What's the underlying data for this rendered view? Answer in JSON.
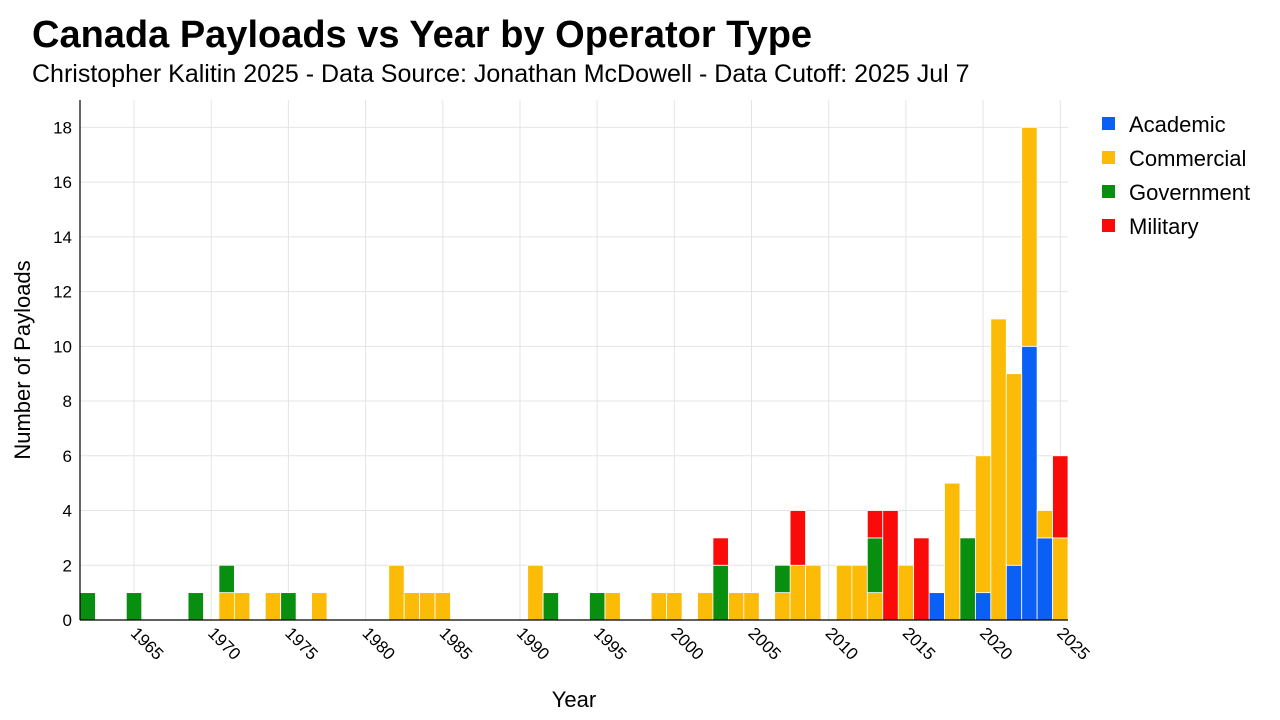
{
  "chart_data": {
    "type": "bar",
    "stacked": true,
    "title": "Canada Payloads vs Year by Operator Type",
    "subtitle": "Christopher Kalitin 2025 - Data Source: Jonathan McDowell - Data Cutoff: 2025 Jul 7",
    "xlabel": "Year",
    "ylabel": "Number of Payloads",
    "xlim": [
      1961.5,
      2025.5
    ],
    "ylim": [
      0,
      19
    ],
    "xticks": [
      1965,
      1970,
      1975,
      1980,
      1985,
      1990,
      1995,
      2000,
      2005,
      2010,
      2015,
      2020,
      2025
    ],
    "yticks": [
      0,
      2,
      4,
      6,
      8,
      10,
      12,
      14,
      16,
      18
    ],
    "grid": true,
    "legend_position": "top-right",
    "series": [
      {
        "name": "Academic",
        "color": "#0a5ff5",
        "points": [
          [
            2017,
            1
          ],
          [
            2020,
            1
          ],
          [
            2022,
            2
          ],
          [
            2023,
            10
          ],
          [
            2024,
            3
          ]
        ]
      },
      {
        "name": "Commercial",
        "color": "#fbbb06",
        "points": [
          [
            1971,
            1
          ],
          [
            1972,
            1
          ],
          [
            1974,
            1
          ],
          [
            1977,
            1
          ],
          [
            1982,
            2
          ],
          [
            1983,
            1
          ],
          [
            1984,
            1
          ],
          [
            1985,
            1
          ],
          [
            1991,
            2
          ],
          [
            1996,
            1
          ],
          [
            1999,
            1
          ],
          [
            2000,
            1
          ],
          [
            2002,
            1
          ],
          [
            2004,
            1
          ],
          [
            2005,
            1
          ],
          [
            2007,
            1
          ],
          [
            2008,
            2
          ],
          [
            2009,
            2
          ],
          [
            2011,
            2
          ],
          [
            2012,
            2
          ],
          [
            2013,
            1
          ],
          [
            2015,
            2
          ],
          [
            2018,
            5
          ],
          [
            2020,
            5
          ],
          [
            2021,
            11
          ],
          [
            2022,
            7
          ],
          [
            2023,
            8
          ],
          [
            2024,
            1
          ],
          [
            2025,
            3
          ]
        ]
      },
      {
        "name": "Government",
        "color": "#088f10",
        "points": [
          [
            1962,
            1
          ],
          [
            1965,
            1
          ],
          [
            1969,
            1
          ],
          [
            1971,
            1
          ],
          [
            1975,
            1
          ],
          [
            1992,
            1
          ],
          [
            1995,
            1
          ],
          [
            2003,
            2
          ],
          [
            2007,
            1
          ],
          [
            2013,
            2
          ],
          [
            2019,
            3
          ]
        ]
      },
      {
        "name": "Military",
        "color": "#fb0a0a",
        "points": [
          [
            2003,
            1
          ],
          [
            2008,
            2
          ],
          [
            2013,
            1
          ],
          [
            2014,
            4
          ],
          [
            2016,
            3
          ],
          [
            2025,
            3
          ]
        ]
      }
    ]
  }
}
